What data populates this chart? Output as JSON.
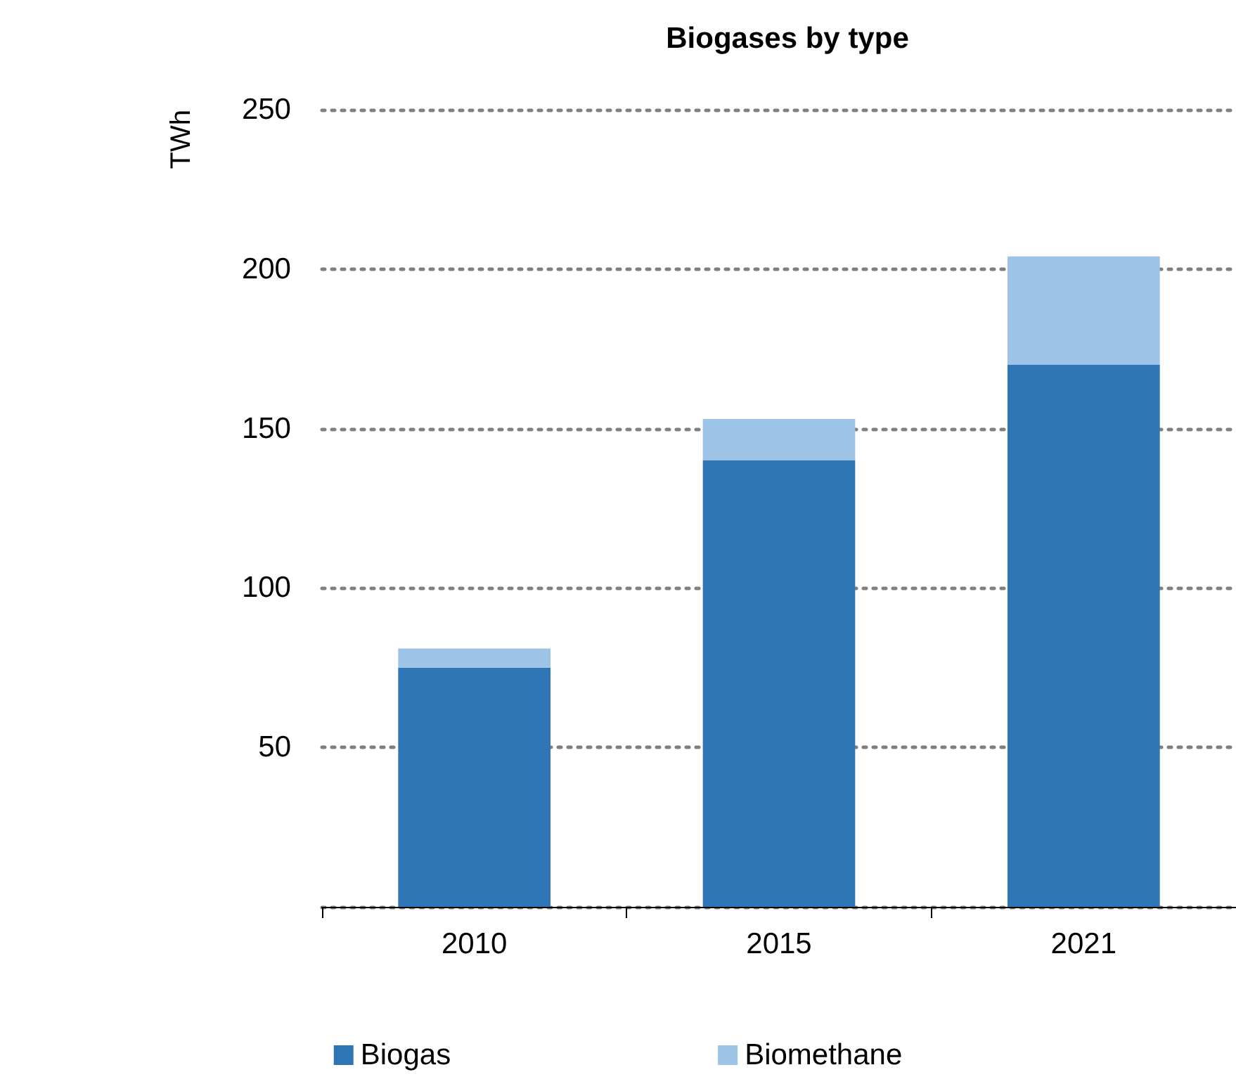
{
  "chart_data": {
    "type": "bar",
    "title": "Biogases by type",
    "ylabel": "TWh",
    "categories": [
      "2010",
      "2015",
      "2021"
    ],
    "series": [
      {
        "name": "Biogas",
        "color": "#2e75b6",
        "values": [
          75,
          140,
          170
        ]
      },
      {
        "name": "Biomethane",
        "color": "#9dc3e6",
        "values": [
          6,
          13,
          34
        ]
      }
    ],
    "stacked": true,
    "ylim": [
      0,
      250
    ],
    "yticks": [
      {
        "value": 0,
        "label": null
      },
      50,
      100,
      150,
      200,
      250
    ],
    "grid": "y",
    "legend": "bottom"
  }
}
